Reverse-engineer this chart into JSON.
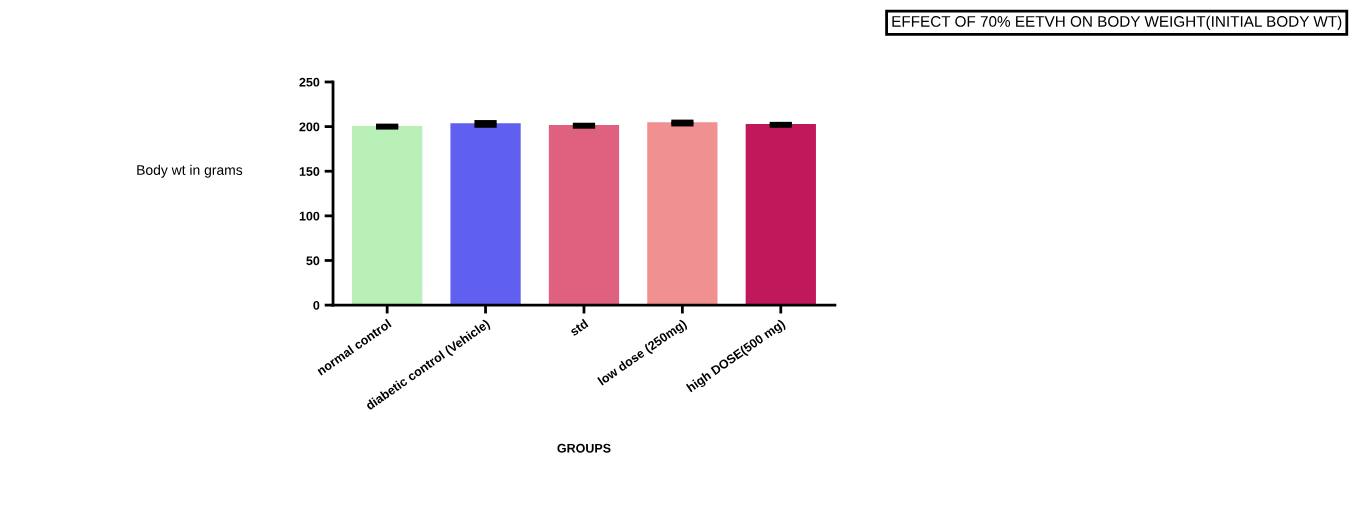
{
  "chart_data": {
    "type": "bar",
    "title": "EFFECT OF 70% EETVH ON BODY WEIGHT(INITIAL BODY WT)",
    "xlabel": "GROUPS",
    "ylabel": "Body wt in grams",
    "categories": [
      "normal control",
      "diabetic control (Vehicle)",
      "std",
      "low dose (250mg)",
      "high DOSE(500 mg)"
    ],
    "values": [
      200,
      203,
      201,
      204,
      202
    ],
    "errors": [
      1,
      2,
      1,
      1.5,
      1
    ],
    "colors": [
      "#b8f0b8",
      "#6060f0",
      "#e06080",
      "#f09090",
      "#c0185a"
    ],
    "ylim": [
      0,
      250
    ],
    "yticks": [
      0,
      50,
      100,
      150,
      200,
      250
    ],
    "grid": false,
    "legend": false
  }
}
